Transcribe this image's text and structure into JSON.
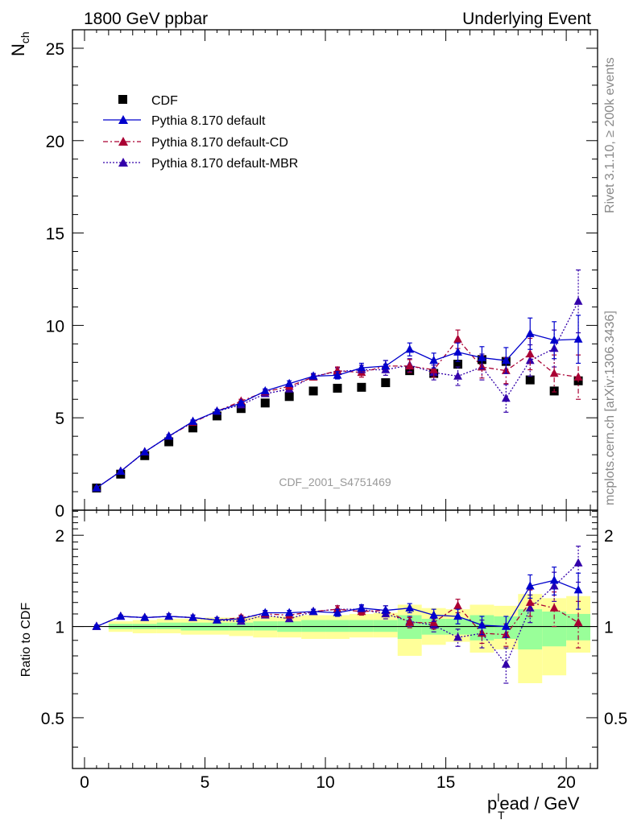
{
  "header": {
    "left": "1800 GeV ppbar",
    "right": "Underlying Event"
  },
  "side_text": {
    "rivet": "Rivet 3.1.10, ≥ 200k events",
    "mcplots": "mcplots.cern.ch [arXiv:1306.3436]"
  },
  "watermark": "CDF_2001_S4751469",
  "axes": {
    "ylabel_main": "N",
    "ylabel_main_sub": "ch",
    "ylabel_ratio": "Ratio to CDF",
    "xlabel_p": "p",
    "xlabel_sub": "T",
    "xlabel_sup": "l",
    "xlabel_rest": "ead / GeV"
  },
  "legend": {
    "cdf": "CDF",
    "default": "Pythia 8.170 default",
    "cd": "Pythia 8.170 default-CD",
    "mbr": "Pythia 8.170 default-MBR"
  },
  "colors": {
    "data": "#000000",
    "default": "#0000cc",
    "cd": "#aa0033",
    "mbr": "#3300aa",
    "band_inner": "#99ff99",
    "band_outer": "#ffff99"
  },
  "chart_data": [
    {
      "type": "scatter",
      "panel": "main",
      "xlim": [
        -0.5,
        21.3
      ],
      "ylim": [
        0,
        26
      ],
      "x_ticks": [
        "0",
        "5",
        "10",
        "15",
        "20"
      ],
      "y_ticks": [
        "0",
        "5",
        "10",
        "15",
        "20",
        "25"
      ],
      "x": [
        0.5,
        1.5,
        2.5,
        3.5,
        4.5,
        5.5,
        6.5,
        7.5,
        8.5,
        9.5,
        10.5,
        11.5,
        12.5,
        13.5,
        14.5,
        15.5,
        16.5,
        17.5,
        18.5,
        19.5,
        20.5
      ],
      "series": [
        {
          "name": "CDF",
          "values": [
            1.2,
            1.95,
            2.95,
            3.7,
            4.45,
            5.1,
            5.5,
            5.8,
            6.15,
            6.45,
            6.6,
            6.65,
            6.9,
            7.55,
            7.4,
            7.9,
            8.15,
            8.05,
            7.05,
            6.45,
            7.0
          ]
        },
        {
          "name": "Pythia 8.170 default",
          "values": [
            1.2,
            2.1,
            3.15,
            4.0,
            4.8,
            5.35,
            5.8,
            6.45,
            6.85,
            7.25,
            7.3,
            7.7,
            7.8,
            8.7,
            8.1,
            8.55,
            8.25,
            8.1,
            9.55,
            9.2,
            9.25
          ],
          "err": [
            0.05,
            0.05,
            0.05,
            0.08,
            0.08,
            0.1,
            0.1,
            0.12,
            0.15,
            0.15,
            0.2,
            0.25,
            0.3,
            0.35,
            0.4,
            0.5,
            0.6,
            0.7,
            0.85,
            1.0,
            1.3
          ]
        },
        {
          "name": "Pythia 8.170 default-CD",
          "values": [
            1.2,
            2.1,
            3.15,
            4.0,
            4.75,
            5.35,
            5.9,
            6.4,
            6.7,
            7.2,
            7.55,
            7.45,
            7.8,
            7.8,
            7.6,
            9.25,
            7.75,
            7.55,
            8.45,
            7.4,
            7.2
          ],
          "err": [
            0.05,
            0.05,
            0.05,
            0.08,
            0.08,
            0.1,
            0.1,
            0.12,
            0.15,
            0.15,
            0.2,
            0.25,
            0.3,
            0.35,
            0.4,
            0.5,
            0.6,
            0.7,
            0.85,
            1.0,
            1.2
          ]
        },
        {
          "name": "Pythia 8.170 default-MBR",
          "values": [
            1.2,
            2.1,
            3.15,
            4.0,
            4.8,
            5.35,
            5.7,
            6.3,
            6.55,
            7.25,
            7.5,
            7.6,
            7.6,
            7.85,
            7.45,
            7.25,
            7.75,
            6.05,
            8.1,
            8.75,
            11.3
          ],
          "err": [
            0.05,
            0.05,
            0.05,
            0.08,
            0.08,
            0.1,
            0.1,
            0.12,
            0.15,
            0.15,
            0.2,
            0.25,
            0.3,
            0.35,
            0.4,
            0.5,
            0.7,
            0.75,
            0.85,
            1.0,
            1.7
          ]
        }
      ]
    },
    {
      "type": "scatter",
      "panel": "ratio",
      "xlim": [
        -0.5,
        21.3
      ],
      "ylim": [
        0.34,
        2.42
      ],
      "y_ticks": [
        "0.5",
        "1",
        "2"
      ],
      "x": [
        0.5,
        1.5,
        2.5,
        3.5,
        4.5,
        5.5,
        6.5,
        7.5,
        8.5,
        9.5,
        10.5,
        11.5,
        12.5,
        13.5,
        14.5,
        15.5,
        16.5,
        17.5,
        18.5,
        19.5,
        20.5
      ],
      "bands": {
        "outer_low": [
          1.0,
          0.96,
          0.95,
          0.95,
          0.94,
          0.94,
          0.93,
          0.92,
          0.92,
          0.91,
          0.91,
          0.92,
          0.92,
          0.8,
          0.87,
          0.89,
          0.82,
          0.84,
          0.65,
          0.69,
          0.82
        ],
        "outer_high": [
          1.0,
          1.04,
          1.05,
          1.06,
          1.06,
          1.07,
          1.07,
          1.08,
          1.08,
          1.09,
          1.09,
          1.1,
          1.11,
          1.18,
          1.15,
          1.14,
          1.18,
          1.17,
          1.28,
          1.24,
          1.26
        ],
        "inner_low": [
          1.0,
          0.98,
          0.98,
          0.98,
          0.97,
          0.97,
          0.97,
          0.97,
          0.96,
          0.96,
          0.96,
          0.96,
          0.96,
          0.91,
          0.94,
          0.94,
          0.9,
          0.91,
          0.84,
          0.86,
          0.9
        ],
        "inner_high": [
          1.0,
          1.02,
          1.02,
          1.03,
          1.03,
          1.03,
          1.03,
          1.04,
          1.04,
          1.05,
          1.05,
          1.05,
          1.05,
          1.09,
          1.06,
          1.06,
          1.09,
          1.08,
          1.14,
          1.12,
          1.1
        ]
      },
      "series": [
        {
          "name": "Pythia 8.170 default",
          "values": [
            1.0,
            1.08,
            1.07,
            1.08,
            1.07,
            1.05,
            1.06,
            1.11,
            1.11,
            1.12,
            1.11,
            1.15,
            1.13,
            1.15,
            1.09,
            1.08,
            1.01,
            1.0,
            1.36,
            1.42,
            1.32
          ],
          "err": [
            0.01,
            0.01,
            0.01,
            0.02,
            0.02,
            0.02,
            0.02,
            0.02,
            0.02,
            0.02,
            0.03,
            0.03,
            0.04,
            0.04,
            0.05,
            0.06,
            0.07,
            0.08,
            0.12,
            0.15,
            0.18
          ]
        },
        {
          "name": "Pythia 8.170 default-CD",
          "values": [
            1.0,
            1.08,
            1.07,
            1.08,
            1.07,
            1.05,
            1.07,
            1.1,
            1.09,
            1.12,
            1.14,
            1.12,
            1.13,
            1.03,
            1.03,
            1.17,
            0.95,
            0.94,
            1.2,
            1.15,
            1.03
          ],
          "err": [
            0.01,
            0.01,
            0.01,
            0.02,
            0.02,
            0.02,
            0.02,
            0.02,
            0.02,
            0.02,
            0.03,
            0.03,
            0.04,
            0.04,
            0.05,
            0.06,
            0.07,
            0.08,
            0.12,
            0.15,
            0.18
          ]
        },
        {
          "name": "Pythia 8.170 default-MBR",
          "values": [
            1.0,
            1.08,
            1.07,
            1.08,
            1.07,
            1.05,
            1.04,
            1.09,
            1.06,
            1.12,
            1.14,
            1.14,
            1.1,
            1.04,
            1.01,
            0.92,
            0.95,
            0.75,
            1.15,
            1.36,
            1.62
          ],
          "err": [
            0.01,
            0.01,
            0.01,
            0.02,
            0.02,
            0.02,
            0.02,
            0.02,
            0.02,
            0.02,
            0.03,
            0.03,
            0.04,
            0.04,
            0.05,
            0.06,
            0.1,
            0.1,
            0.12,
            0.15,
            0.22
          ]
        }
      ]
    }
  ]
}
